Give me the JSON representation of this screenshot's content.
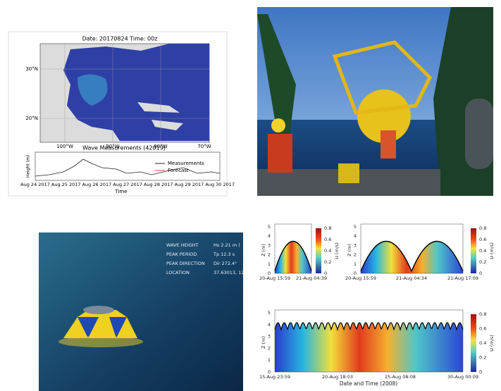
{
  "map_panel": {
    "title": "Date: 20170824 Time: 00z",
    "lat_labels": [
      "30°N",
      "20°N"
    ],
    "lon_labels": [
      "100°W",
      "90°W",
      "80°W",
      "70°W"
    ],
    "series_title": "Wave Measurements (42019)",
    "y_label": "Height (m)",
    "legend": [
      "Measurements",
      "Forecast"
    ],
    "x_labels": [
      "Aug 24 2017",
      "Aug 25 2017",
      "Aug 26 2017",
      "Aug 27 2017",
      "Aug 28 2017",
      "Aug 29 2017",
      "Aug 30 2017"
    ],
    "x_label": "Time"
  },
  "overlay": {
    "rows": [
      [
        "WAVE HEIGHT",
        "Hs 2.21 m ("
      ],
      [
        "PEAK PERIOD",
        "Tp 12.3 s"
      ],
      [
        "PEAK DIRECTION",
        "Dir 272.4°"
      ],
      [
        "LOCATION",
        "37.63013, 12"
      ]
    ]
  },
  "profile_panel": {
    "z_label": "Z (m)",
    "z_ticks": [
      "5",
      "4",
      "3",
      "2",
      "1",
      "0"
    ],
    "color_label": "U (m/s)",
    "color_ticks": [
      "0.8",
      "0.6",
      "0.4",
      "0.2",
      "0"
    ],
    "top_left_x": [
      "20-Aug 15:59",
      "21-Aug 04:39"
    ],
    "top_right_x": [
      "20-Aug 15:59",
      "21-Aug 04:34",
      "21-Aug 17:09"
    ],
    "bottom_x": [
      "15-Aug 23:59",
      "20-Aug 18:03",
      "25-Aug 08:08",
      "30-Aug 00:09"
    ],
    "x_label": "Date and Time (2008)"
  }
}
